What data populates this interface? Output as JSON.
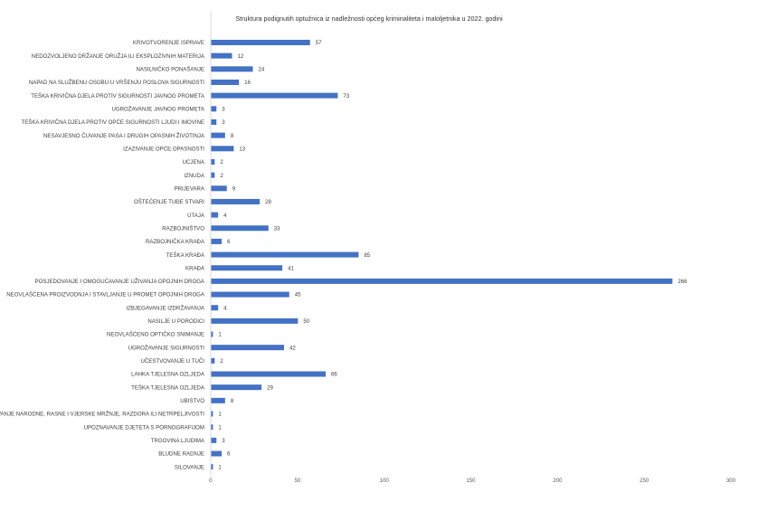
{
  "chart_data": {
    "type": "bar",
    "orientation": "horizontal",
    "title": "Struktura podignutih optužnica iz nadležnosti općeg kriminaliteta i maloljetnika u 2022. godini",
    "categories": [
      "KRIVOTVORENJE ISPRAVE",
      "NEDOZVOLJENO DRŽANJE ORUŽJA ILI EKSPLOZIVNIH MATERIJA",
      "NASILNIČKO PONAŠANJE",
      "NAPAD NA SLUŽBENU OSOBU U VRŠENJU POSLOVA SIGURNOSTI",
      "TEŠKA KRIVIČNA DJELA PROTIV SIGURNOSTI JAVNOG PROMETA",
      "UGROŽAVANJE JAVNOG PROMETA",
      "TEŠKA KRIVIČNA DJELA PROTIV OPĆE SIGURNOSTI LJUDI I IMOVINE",
      "NESAVJESNO ČUVANJE PASA I DRUGIH OPASNIH ŽIVOTINJA",
      "IZAZIVANJE OPĆE OPASNOSTI",
      "UCJENA",
      "IZNUDA",
      "PRIJEVARA",
      "OŠTEĆENJE TUĐE STVARI",
      "UTAJA",
      "RAZBOJNIŠTVO",
      "RAZBOJNIČKA KRAĐA",
      "TEŠKA KRAĐA",
      "KRAĐA",
      "POSJEDOVANJE I OMOGUĆAVANJE UŽIVANJA OPOJNIH DROGA",
      "NEOVLAŠĆENA PROIZVODNJA I STAVLJANJE U PROMET OPOJNIH DROGA",
      "IZBJEGAVANJE IZDRŽAVANJA",
      "NASILJE U PORODICI",
      "NEOVLAŠĆENO OPTIČKO SNIMANJE",
      "UGROŽAVANJE SIGURNOSTI",
      "UČESTVOVANJE U TUČI",
      "LAHKA TJELESNA OZLJEDA",
      "TEŠKA TJELESNA OZLJEDA",
      "UBISTVO",
      "IZAZIVANJE NARODNE, RASNE I VJERSKE MRŽNJE, RAZDORA ILI NETRPELJIVOSTI",
      "UPOZNAVANJE DJETETA S PORNOGRAFIJOM",
      "TRGOVINA LJUDIMA",
      "BLUDNE RADNJE",
      "SILOVANJE"
    ],
    "values": [
      57,
      12,
      24,
      16,
      73,
      3,
      3,
      8,
      13,
      2,
      2,
      9,
      28,
      4,
      33,
      6,
      85,
      41,
      266,
      45,
      4,
      50,
      1,
      42,
      2,
      66,
      29,
      8,
      1,
      1,
      3,
      6,
      1
    ],
    "xlim": [
      0,
      300
    ],
    "xticks": [
      0,
      50,
      100,
      150,
      200,
      250,
      300
    ],
    "bar_color": "#4472c4",
    "data_labels": true,
    "grid": false,
    "legend": "none"
  }
}
